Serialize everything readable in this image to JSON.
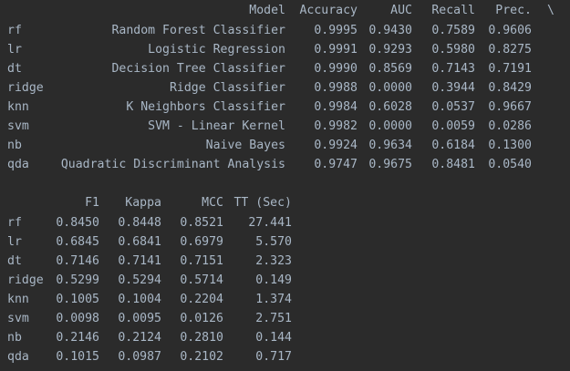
{
  "table1": {
    "headers": {
      "model": "Model",
      "accuracy": "Accuracy",
      "auc": "AUC",
      "recall": "Recall",
      "prec": "Prec.",
      "continuation": "\\"
    },
    "rows": [
      {
        "index": "rf",
        "model": "Random Forest Classifier",
        "accuracy": "0.9995",
        "auc": "0.9430",
        "recall": "0.7589",
        "prec": "0.9606"
      },
      {
        "index": "lr",
        "model": "Logistic Regression",
        "accuracy": "0.9991",
        "auc": "0.9293",
        "recall": "0.5980",
        "prec": "0.8275"
      },
      {
        "index": "dt",
        "model": "Decision Tree Classifier",
        "accuracy": "0.9990",
        "auc": "0.8569",
        "recall": "0.7143",
        "prec": "0.7191"
      },
      {
        "index": "ridge",
        "model": "Ridge Classifier",
        "accuracy": "0.9988",
        "auc": "0.0000",
        "recall": "0.3944",
        "prec": "0.8429"
      },
      {
        "index": "knn",
        "model": "K Neighbors Classifier",
        "accuracy": "0.9984",
        "auc": "0.6028",
        "recall": "0.0537",
        "prec": "0.9667"
      },
      {
        "index": "svm",
        "model": "SVM - Linear Kernel",
        "accuracy": "0.9982",
        "auc": "0.0000",
        "recall": "0.0059",
        "prec": "0.0286"
      },
      {
        "index": "nb",
        "model": "Naive Bayes",
        "accuracy": "0.9924",
        "auc": "0.9634",
        "recall": "0.6184",
        "prec": "0.1300"
      },
      {
        "index": "qda",
        "model": "Quadratic Discriminant Analysis",
        "accuracy": "0.9747",
        "auc": "0.9675",
        "recall": "0.8481",
        "prec": "0.0540"
      }
    ]
  },
  "table2": {
    "headers": {
      "f1": "F1",
      "kappa": "Kappa",
      "mcc": "MCC",
      "tt": "TT (Sec)"
    },
    "rows": [
      {
        "index": "rf",
        "f1": "0.8450",
        "kappa": "0.8448",
        "mcc": "0.8521",
        "tt": "27.441"
      },
      {
        "index": "lr",
        "f1": "0.6845",
        "kappa": "0.6841",
        "mcc": "0.6979",
        "tt": "5.570"
      },
      {
        "index": "dt",
        "f1": "0.7146",
        "kappa": "0.7141",
        "mcc": "0.7151",
        "tt": "2.323"
      },
      {
        "index": "ridge",
        "f1": "0.5299",
        "kappa": "0.5294",
        "mcc": "0.5714",
        "tt": "0.149"
      },
      {
        "index": "knn",
        "f1": "0.1005",
        "kappa": "0.1004",
        "mcc": "0.2204",
        "tt": "1.374"
      },
      {
        "index": "svm",
        "f1": "0.0098",
        "kappa": "0.0095",
        "mcc": "0.0126",
        "tt": "2.751"
      },
      {
        "index": "nb",
        "f1": "0.2146",
        "kappa": "0.2124",
        "mcc": "0.2810",
        "tt": "0.144"
      },
      {
        "index": "qda",
        "f1": "0.1015",
        "kappa": "0.0987",
        "mcc": "0.2102",
        "tt": "0.717"
      }
    ]
  },
  "colors": {
    "background": "#2b2b2b",
    "text": "#a9b7c6"
  }
}
